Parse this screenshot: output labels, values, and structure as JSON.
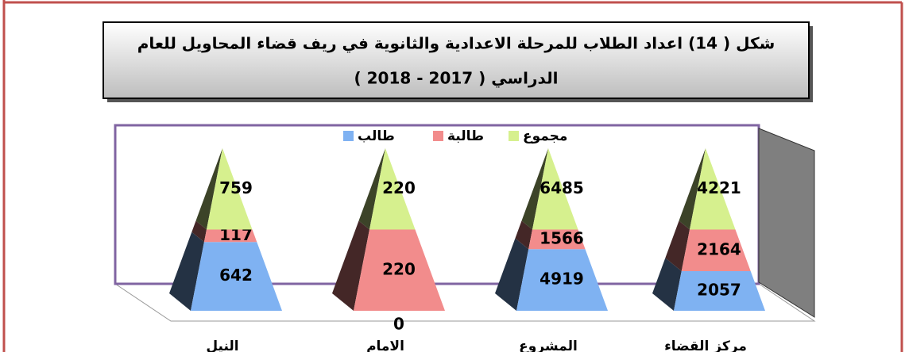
{
  "chart_data": {
    "type": "pyramid",
    "title": [
      "شكل ( 14) اعداد الطلاب للمرحلة الاعدادية والثانوية في ريف قضاء المحاويل للعام",
      "الدراسي ( 2017 - 2018 )"
    ],
    "categories": [
      "النيل",
      "الامام",
      "المشروع",
      "مركز القضاء"
    ],
    "series": [
      {
        "name": "طالب",
        "color": "#7fb2f2",
        "values": [
          642,
          0,
          4919,
          2057
        ]
      },
      {
        "name": "طالبة",
        "color": "#f28c8c",
        "values": [
          117,
          220,
          1566,
          2164
        ]
      },
      {
        "name": "مجموع",
        "color": "#d6f08e",
        "values": [
          759,
          220,
          6485,
          4221
        ]
      }
    ]
  }
}
